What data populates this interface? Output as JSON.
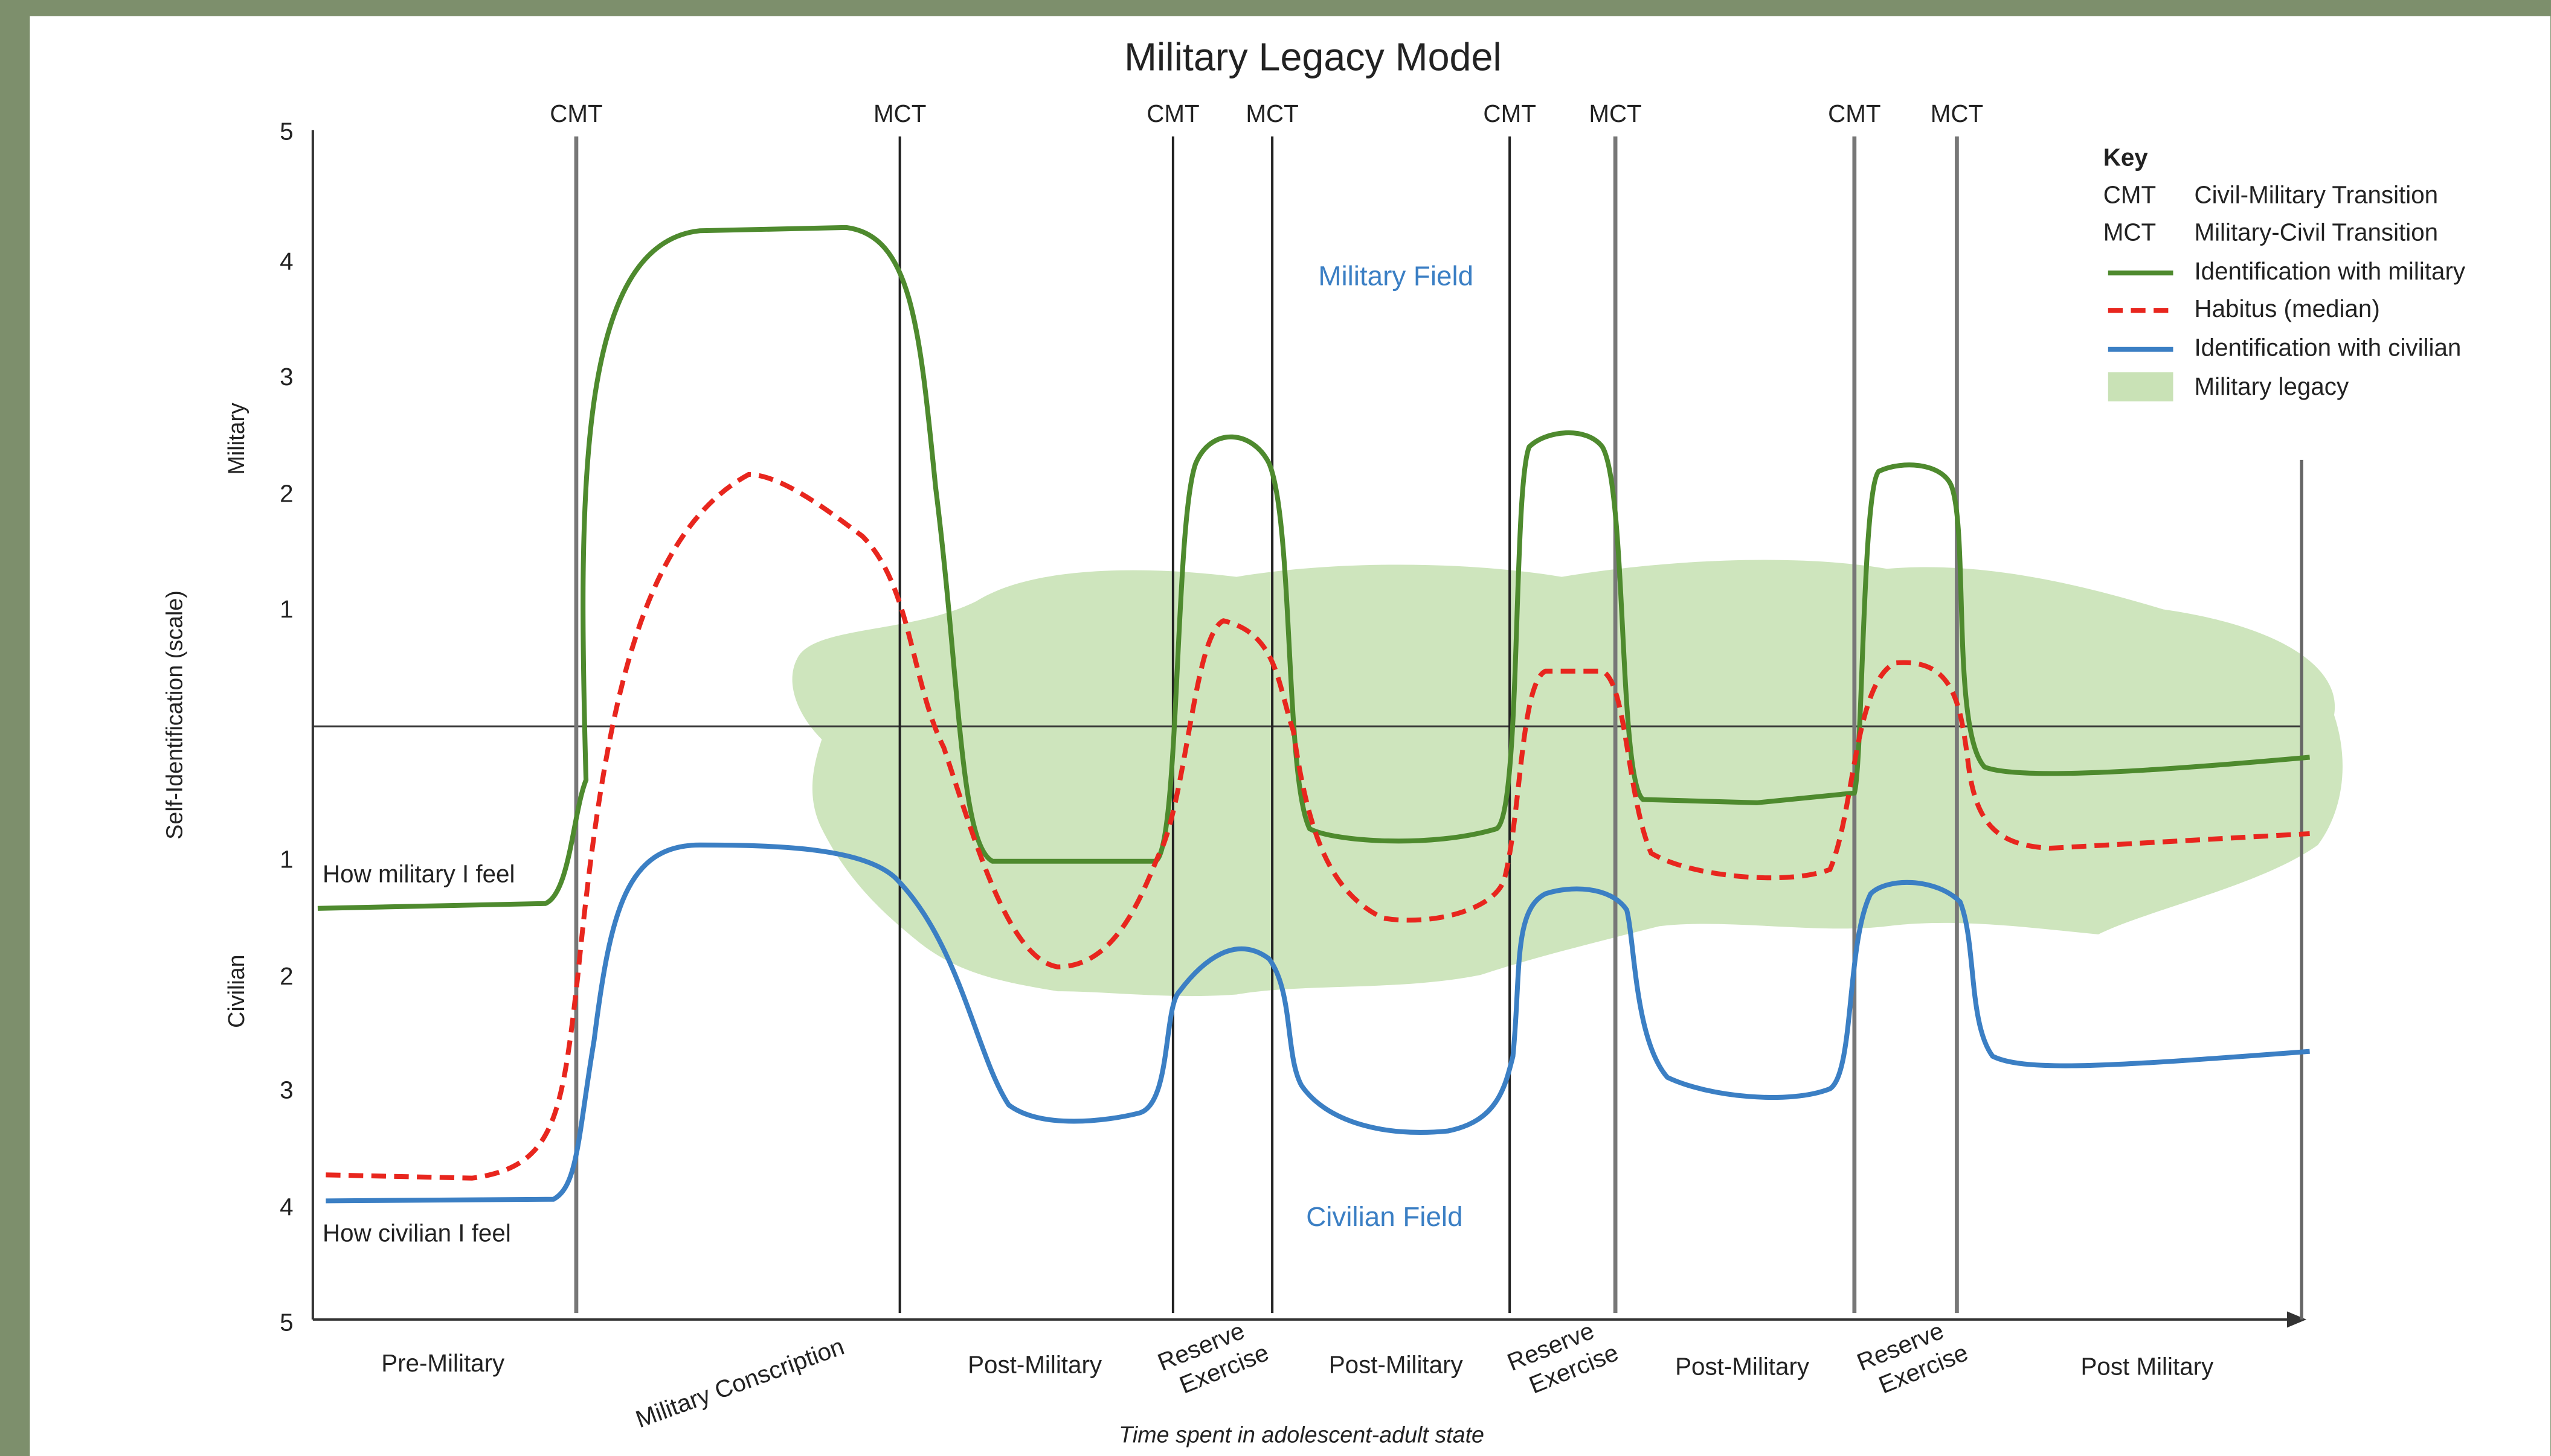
{
  "title": "Military Legacy Model",
  "y_axis": {
    "label": "Self-Identification (scale)",
    "upper": "Military",
    "lower": "Civilian",
    "ticks_upper": [
      5,
      4,
      3,
      2,
      1
    ],
    "ticks_lower": [
      1,
      2,
      3,
      4,
      5
    ]
  },
  "x_axis": {
    "label": "Time spent in adolescent-adult state"
  },
  "transitions": [
    "CMT",
    "MCT",
    "CMT",
    "MCT",
    "CMT",
    "MCT",
    "CMT",
    "MCT"
  ],
  "phases": [
    [
      "Pre-Military"
    ],
    [
      "Military Conscription"
    ],
    [
      "Post-Military"
    ],
    [
      "Reserve",
      "Exercise"
    ],
    [
      "Post-Military"
    ],
    [
      "Reserve",
      "Exercise"
    ],
    [
      "Post-Military"
    ],
    [
      "Reserve",
      "Exercise"
    ],
    [
      "Post Military"
    ]
  ],
  "fields": {
    "military": "Military Field",
    "civilian": "Civilian Field"
  },
  "annotations": {
    "military": "How military I feel",
    "civilian": "How civilian I feel"
  },
  "key": {
    "title": "Key",
    "abbreviations": [
      {
        "symbol": "CMT",
        "label": "Civil-Military Transition"
      },
      {
        "symbol": "MCT",
        "label": "Military-Civil Transition"
      }
    ],
    "items": [
      "Identification with military",
      "Habitus (median)",
      "Identification with civilian",
      "Military legacy"
    ]
  }
}
